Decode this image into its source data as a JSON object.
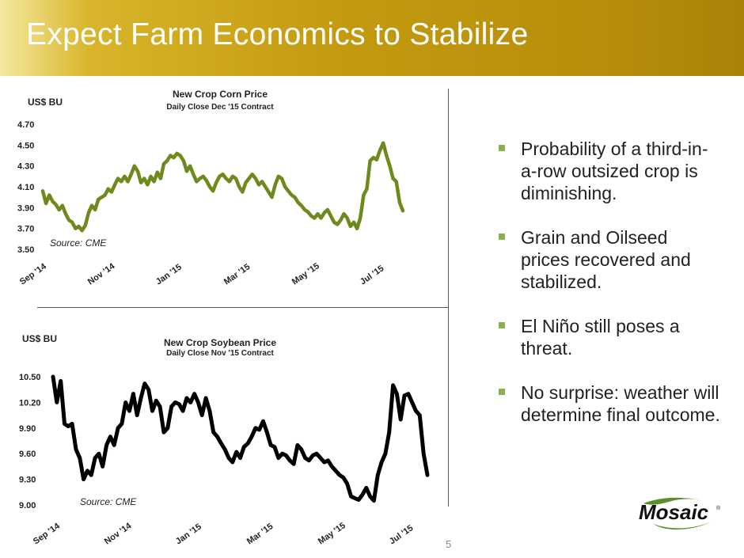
{
  "slide": {
    "title": "Expect Farm Economics to Stabilize",
    "page_number": "5",
    "logo_text": "Mosaic",
    "bullets": [
      "Probability of a third-in-a-row outsized crop is diminishing.",
      "Grain and Oilseed prices recovered and stabilized.",
      "El Niño still poses a threat.",
      "No surprise: weather will determine final outcome."
    ]
  },
  "colors": {
    "banner": "#c49a10",
    "corn_line": "#6f8a1c",
    "soy_line": "#000000",
    "bullet": "#8ab24a",
    "logo_green": "#5a8f2a"
  },
  "chart_data": [
    {
      "type": "line",
      "title": "New Crop Corn Price",
      "subtitle": "Daily Close Dec '15 Contract",
      "ylabel": "US$ BU",
      "source": "Source: CME",
      "ylim": [
        3.5,
        4.7
      ],
      "yticks": [
        "4.70",
        "4.50",
        "4.30",
        "4.10",
        "3.90",
        "3.70",
        "3.50"
      ],
      "xticks": [
        "Sep '14",
        "Nov '14",
        "Jan '15",
        "Mar '15",
        "May '15",
        "Jul '15"
      ],
      "series": [
        {
          "values": [
            4.06,
            3.94,
            4.02,
            3.96,
            3.93,
            3.88,
            3.92,
            3.84,
            3.78,
            3.76,
            3.7,
            3.72,
            3.68,
            3.73,
            3.85,
            3.92,
            3.88,
            3.98,
            4.0,
            4.02,
            4.08,
            4.05,
            4.12,
            4.18,
            4.15,
            4.2,
            4.15,
            4.22,
            4.3,
            4.25,
            4.14,
            4.18,
            4.12,
            4.2,
            4.15,
            4.24,
            4.18,
            4.32,
            4.35,
            4.4,
            4.38,
            4.42,
            4.4,
            4.35,
            4.25,
            4.3,
            4.22,
            4.15,
            4.18,
            4.2,
            4.16,
            4.1,
            4.06,
            4.14,
            4.2,
            4.22,
            4.18,
            4.15,
            4.2,
            4.18,
            4.1,
            4.05,
            4.14,
            4.18,
            4.22,
            4.18,
            4.12,
            4.15,
            4.1,
            4.05,
            4.0,
            4.12,
            4.2,
            4.18,
            4.1,
            4.06,
            4.02,
            4.0,
            3.95,
            3.92,
            3.88,
            3.86,
            3.82,
            3.8,
            3.84,
            3.8,
            3.85,
            3.88,
            3.82,
            3.76,
            3.74,
            3.78,
            3.84,
            3.8,
            3.72,
            3.76,
            3.7,
            3.8,
            4.02,
            4.08,
            4.35,
            4.38,
            4.36,
            4.45,
            4.52,
            4.4,
            4.3,
            4.18,
            4.15,
            3.95,
            3.87
          ]
        }
      ]
    },
    {
      "type": "line",
      "title": "New Crop Soybean Price",
      "subtitle": "Daily Close Nov '15 Contract",
      "ylabel": "US$ BU",
      "source": "Source: CME",
      "ylim": [
        9.0,
        10.5
      ],
      "yticks": [
        "10.50",
        "10.20",
        "9.90",
        "9.60",
        "9.30",
        "9.00"
      ],
      "xticks": [
        "Sep '14",
        "Nov '14",
        "Jan '15",
        "Mar '15",
        "May '15",
        "Jul '15"
      ],
      "series": [
        {
          "values": [
            10.5,
            10.2,
            10.45,
            9.95,
            9.92,
            9.95,
            9.65,
            9.55,
            9.3,
            9.4,
            9.35,
            9.55,
            9.6,
            9.45,
            9.7,
            9.8,
            9.7,
            9.9,
            9.95,
            10.2,
            10.1,
            10.3,
            10.05,
            10.25,
            10.42,
            10.35,
            10.1,
            10.22,
            10.15,
            9.85,
            9.9,
            10.15,
            10.2,
            10.18,
            10.1,
            10.25,
            10.2,
            10.3,
            10.2,
            10.05,
            10.25,
            10.1,
            9.85,
            9.8,
            9.72,
            9.65,
            9.55,
            9.5,
            9.62,
            9.55,
            9.68,
            9.72,
            9.8,
            9.9,
            9.88,
            9.98,
            9.85,
            9.7,
            9.68,
            9.55,
            9.6,
            9.58,
            9.52,
            9.48,
            9.7,
            9.65,
            9.55,
            9.52,
            9.58,
            9.6,
            9.55,
            9.5,
            9.52,
            9.45,
            9.4,
            9.35,
            9.32,
            9.25,
            9.1,
            9.08,
            9.06,
            9.12,
            9.2,
            9.1,
            9.05,
            9.35,
            9.5,
            9.6,
            9.85,
            10.4,
            10.3,
            10.0,
            10.28,
            10.3,
            10.2,
            10.1,
            10.05,
            9.6,
            9.35
          ]
        }
      ]
    }
  ]
}
